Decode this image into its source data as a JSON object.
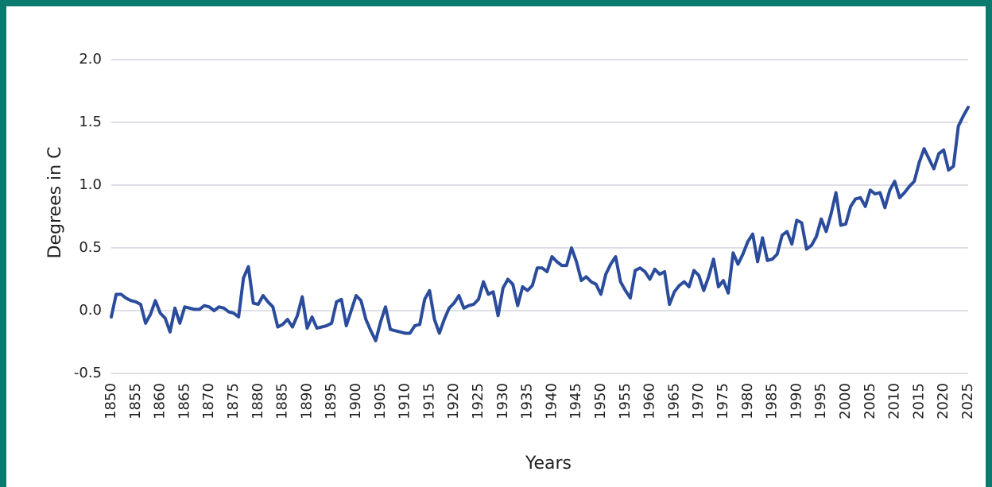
{
  "chart_data": {
    "type": "line",
    "x": [
      1850,
      1851,
      1852,
      1853,
      1854,
      1855,
      1856,
      1857,
      1858,
      1859,
      1860,
      1861,
      1862,
      1863,
      1864,
      1865,
      1866,
      1867,
      1868,
      1869,
      1870,
      1871,
      1872,
      1873,
      1874,
      1875,
      1876,
      1877,
      1878,
      1879,
      1880,
      1881,
      1882,
      1883,
      1884,
      1885,
      1886,
      1887,
      1888,
      1889,
      1890,
      1891,
      1892,
      1893,
      1894,
      1895,
      1896,
      1897,
      1898,
      1899,
      1900,
      1901,
      1902,
      1903,
      1904,
      1905,
      1906,
      1907,
      1908,
      1909,
      1910,
      1911,
      1912,
      1913,
      1914,
      1915,
      1916,
      1917,
      1918,
      1919,
      1920,
      1921,
      1922,
      1923,
      1924,
      1925,
      1926,
      1927,
      1928,
      1929,
      1930,
      1931,
      1932,
      1933,
      1934,
      1935,
      1936,
      1937,
      1938,
      1939,
      1940,
      1941,
      1942,
      1943,
      1944,
      1945,
      1946,
      1947,
      1948,
      1949,
      1950,
      1951,
      1952,
      1953,
      1954,
      1955,
      1956,
      1957,
      1958,
      1959,
      1960,
      1961,
      1962,
      1963,
      1964,
      1965,
      1966,
      1967,
      1968,
      1969,
      1970,
      1971,
      1972,
      1973,
      1974,
      1975,
      1976,
      1977,
      1978,
      1979,
      1980,
      1981,
      1982,
      1983,
      1984,
      1985,
      1986,
      1987,
      1988,
      1989,
      1990,
      1991,
      1992,
      1993,
      1994,
      1995,
      1996,
      1997,
      1998,
      1999,
      2000,
      2001,
      2002,
      2003,
      2004,
      2005,
      2006,
      2007,
      2008,
      2009,
      2010,
      2011,
      2012,
      2013,
      2014,
      2015,
      2016,
      2017,
      2018,
      2019,
      2020,
      2021,
      2022,
      2023,
      2024,
      2025
    ],
    "values": [
      -0.05,
      0.13,
      0.13,
      0.1,
      0.08,
      0.07,
      0.05,
      -0.1,
      -0.03,
      0.08,
      -0.02,
      -0.06,
      -0.17,
      0.02,
      -0.1,
      0.03,
      0.02,
      0.01,
      0.01,
      0.04,
      0.03,
      0.0,
      0.03,
      0.02,
      -0.01,
      -0.02,
      -0.05,
      0.26,
      0.35,
      0.06,
      0.05,
      0.12,
      0.07,
      0.03,
      -0.13,
      -0.11,
      -0.07,
      -0.13,
      -0.04,
      0.11,
      -0.14,
      -0.05,
      -0.14,
      -0.13,
      -0.12,
      -0.1,
      0.07,
      0.09,
      -0.12,
      0.0,
      0.12,
      0.08,
      -0.07,
      -0.16,
      -0.24,
      -0.09,
      0.03,
      -0.15,
      -0.16,
      -0.17,
      -0.18,
      -0.18,
      -0.12,
      -0.11,
      0.09,
      0.16,
      -0.07,
      -0.18,
      -0.07,
      0.02,
      0.06,
      0.12,
      0.02,
      0.04,
      0.05,
      0.09,
      0.23,
      0.13,
      0.15,
      -0.04,
      0.18,
      0.25,
      0.21,
      0.04,
      0.19,
      0.16,
      0.2,
      0.34,
      0.34,
      0.31,
      0.43,
      0.39,
      0.36,
      0.36,
      0.5,
      0.39,
      0.24,
      0.27,
      0.23,
      0.21,
      0.13,
      0.29,
      0.37,
      0.43,
      0.23,
      0.16,
      0.1,
      0.32,
      0.34,
      0.31,
      0.25,
      0.33,
      0.29,
      0.31,
      0.05,
      0.15,
      0.2,
      0.23,
      0.19,
      0.32,
      0.28,
      0.16,
      0.27,
      0.41,
      0.19,
      0.24,
      0.14,
      0.46,
      0.37,
      0.45,
      0.55,
      0.61,
      0.39,
      0.58,
      0.4,
      0.41,
      0.45,
      0.6,
      0.63,
      0.53,
      0.72,
      0.7,
      0.49,
      0.52,
      0.59,
      0.73,
      0.63,
      0.77,
      0.94,
      0.68,
      0.69,
      0.83,
      0.89,
      0.9,
      0.83,
      0.96,
      0.93,
      0.94,
      0.82,
      0.96,
      1.03,
      0.9,
      0.94,
      0.99,
      1.03,
      1.18,
      1.29,
      1.21,
      1.13,
      1.25,
      1.28,
      1.12,
      1.15,
      1.47,
      1.55,
      1.62
    ],
    "color": "#2b4c9c",
    "x_label": "Years",
    "y_label": "Degrees in C",
    "xlim": [
      1850,
      2025
    ],
    "xticks": [
      1850,
      1855,
      1860,
      1865,
      1870,
      1875,
      1880,
      1885,
      1890,
      1895,
      1900,
      1905,
      1910,
      1915,
      1920,
      1925,
      1930,
      1935,
      1940,
      1945,
      1950,
      1955,
      1960,
      1965,
      1970,
      1975,
      1980,
      1985,
      1990,
      1995,
      2000,
      2005,
      2010,
      2015,
      2020,
      2025
    ],
    "ylim": [
      -0.5,
      2.0
    ],
    "yticks": [
      {
        "value": -0.5,
        "label": "-0.5"
      },
      {
        "value": 0,
        "label": "0.0"
      },
      0.5,
      {
        "value": 1,
        "label": "1.0"
      },
      1.5,
      {
        "value": 2,
        "label": "2.0"
      }
    ],
    "grid": true
  }
}
